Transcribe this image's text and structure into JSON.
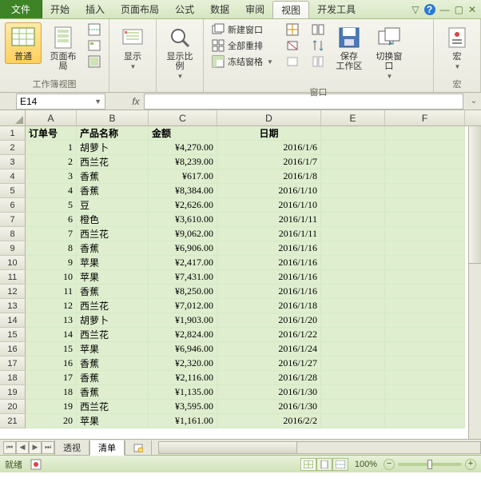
{
  "menu": {
    "file": "文件",
    "items": [
      "开始",
      "插入",
      "页面布局",
      "公式",
      "数据",
      "审阅",
      "视图",
      "开发工具"
    ],
    "active_index": 6
  },
  "ribbon": {
    "groups": [
      {
        "label": "工作簿视图",
        "big": [
          {
            "lbl": "普通",
            "name": "view-normal",
            "active": true
          },
          {
            "lbl": "页面布局",
            "name": "view-page-layout"
          }
        ],
        "small": []
      },
      {
        "label": "显示",
        "big": [
          {
            "lbl": "显示",
            "name": "show-menu",
            "dd": true
          }
        ],
        "small": []
      },
      {
        "label": "",
        "big": [
          {
            "lbl": "显示比例",
            "name": "zoom-menu",
            "dd": true
          }
        ],
        "small": []
      },
      {
        "label": "窗口",
        "big": [],
        "small": [
          {
            "lbl": "新建窗口",
            "name": "new-window"
          },
          {
            "lbl": "全部重排",
            "name": "arrange-all"
          },
          {
            "lbl": "冻结窗格",
            "name": "freeze-panes",
            "dd": true
          }
        ],
        "splitcol": [
          {
            "name": "split-icon"
          },
          {
            "name": "hide-icon"
          },
          {
            "name": "unhide-icon"
          }
        ],
        "big2": [
          {
            "lbl": "保存\n工作区",
            "name": "save-workspace"
          },
          {
            "lbl": "切换窗口",
            "name": "switch-windows",
            "dd": true
          }
        ]
      },
      {
        "label": "宏",
        "big": [
          {
            "lbl": "宏",
            "name": "macros",
            "dd": true
          }
        ],
        "small": []
      }
    ]
  },
  "namebox": "E14",
  "columns": [
    "A",
    "B",
    "C",
    "D",
    "E",
    "F"
  ],
  "headers": [
    "订单号",
    "产品名称",
    "金额",
    "日期"
  ],
  "rows": [
    [
      "1",
      "胡萝卜",
      "¥4,270.00",
      "2016/1/6"
    ],
    [
      "2",
      "西兰花",
      "¥8,239.00",
      "2016/1/7"
    ],
    [
      "3",
      "香蕉",
      "¥617.00",
      "2016/1/8"
    ],
    [
      "4",
      "香蕉",
      "¥8,384.00",
      "2016/1/10"
    ],
    [
      "5",
      "豆",
      "¥2,626.00",
      "2016/1/10"
    ],
    [
      "6",
      "橙色",
      "¥3,610.00",
      "2016/1/11"
    ],
    [
      "7",
      "西兰花",
      "¥9,062.00",
      "2016/1/11"
    ],
    [
      "8",
      "香蕉",
      "¥6,906.00",
      "2016/1/16"
    ],
    [
      "9",
      "苹果",
      "¥2,417.00",
      "2016/1/16"
    ],
    [
      "10",
      "苹果",
      "¥7,431.00",
      "2016/1/16"
    ],
    [
      "11",
      "香蕉",
      "¥8,250.00",
      "2016/1/16"
    ],
    [
      "12",
      "西兰花",
      "¥7,012.00",
      "2016/1/18"
    ],
    [
      "13",
      "胡萝卜",
      "¥1,903.00",
      "2016/1/20"
    ],
    [
      "14",
      "西兰花",
      "¥2,824.00",
      "2016/1/22"
    ],
    [
      "15",
      "苹果",
      "¥6,946.00",
      "2016/1/24"
    ],
    [
      "16",
      "香蕉",
      "¥2,320.00",
      "2016/1/27"
    ],
    [
      "17",
      "香蕉",
      "¥2,116.00",
      "2016/1/28"
    ],
    [
      "18",
      "香蕉",
      "¥1,135.00",
      "2016/1/30"
    ],
    [
      "19",
      "西兰花",
      "¥3,595.00",
      "2016/1/30"
    ],
    [
      "20",
      "苹果",
      "¥1,161.00",
      "2016/2/2"
    ]
  ],
  "sheet_tabs": [
    "透视",
    "清单"
  ],
  "active_sheet": 1,
  "status": {
    "ready": "就绪",
    "rec": "",
    "zoom": "100%"
  },
  "colors": {
    "cell_bg": "#deeece",
    "cell_border": "#d4eac7"
  }
}
